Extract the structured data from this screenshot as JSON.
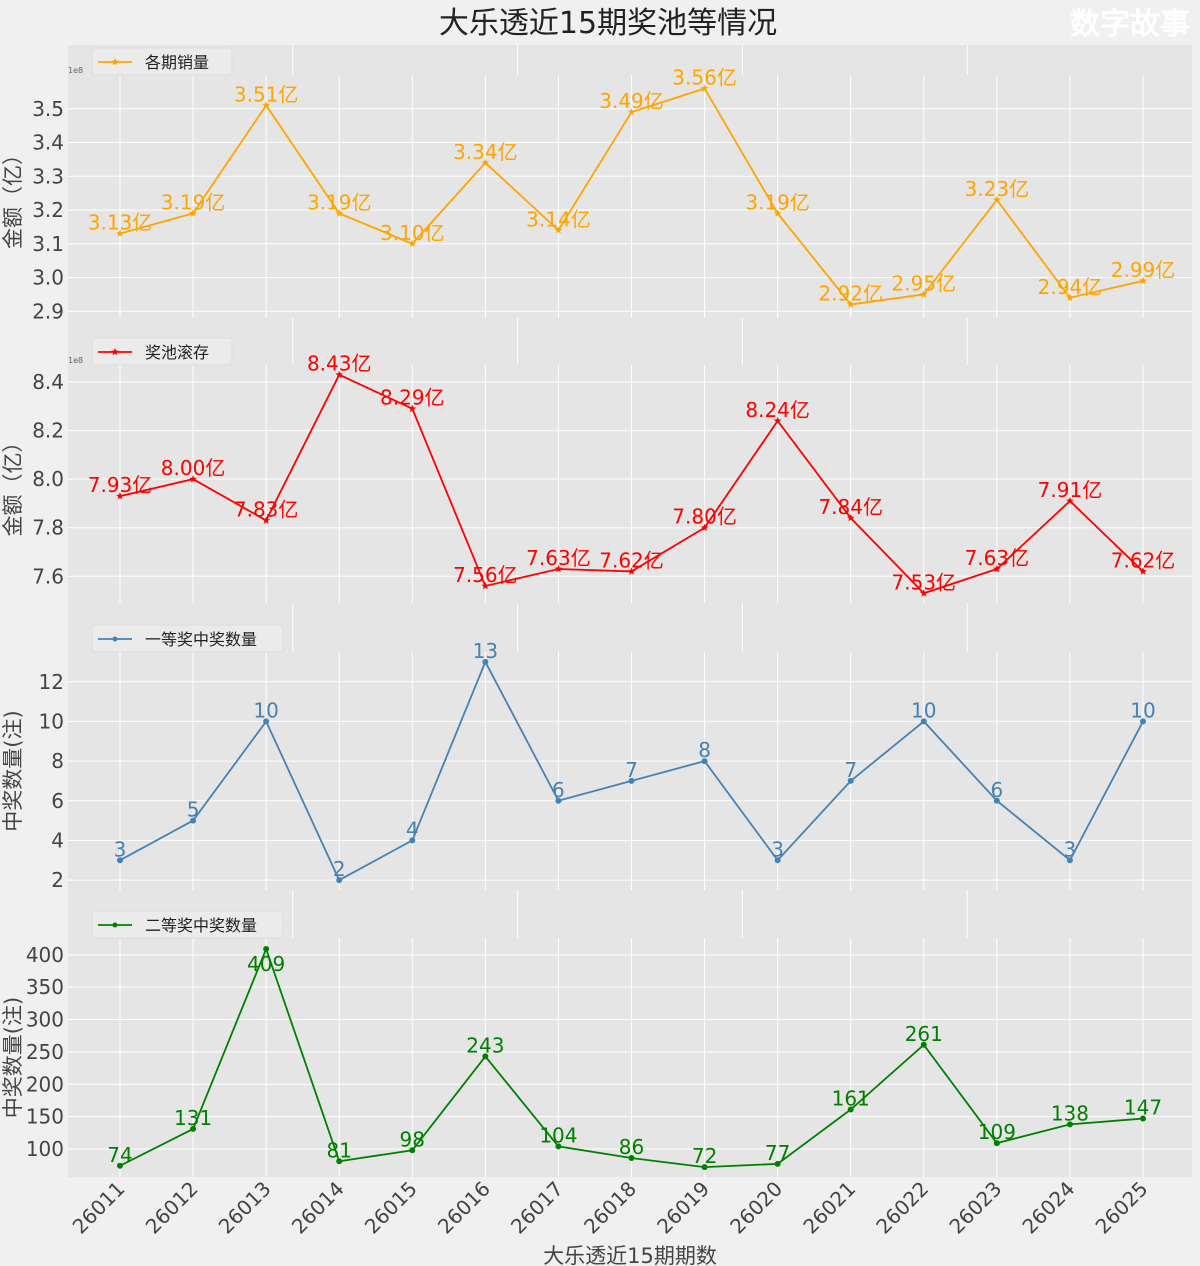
{
  "chart_data": {
    "type": "line",
    "title": "大乐透近15期奖池等情况",
    "xlabel": "大乐透近15期期数",
    "categories": [
      "26011",
      "26012",
      "26013",
      "26014",
      "26015",
      "26016",
      "26017",
      "26018",
      "26019",
      "26020",
      "26021",
      "26022",
      "26023",
      "26024",
      "26025"
    ],
    "watermark": "数字故事",
    "background_axis": {
      "ticks": [
        "0.0",
        "0.2",
        "0.4",
        "0.6",
        "0.8",
        "1.0"
      ]
    },
    "panels": [
      {
        "legend": "各期销量",
        "ylabel": "金额（亿）",
        "color": "#ffa500",
        "marker": "star",
        "offset_label": "1e8",
        "ylim": [
          2.88,
          3.6
        ],
        "yticks": [
          2.9,
          3.0,
          3.1,
          3.2,
          3.3,
          3.4,
          3.5
        ],
        "tick_decimals": 1,
        "label_suffix": "亿",
        "label_decimals": 2,
        "values": [
          3.13,
          3.19,
          3.51,
          3.19,
          3.1,
          3.34,
          3.14,
          3.49,
          3.56,
          3.19,
          2.92,
          2.95,
          3.23,
          2.94,
          2.99
        ]
      },
      {
        "legend": "奖池滚存",
        "ylabel": "金额（亿）",
        "color": "#ff0000",
        "marker": "star",
        "offset_label": "1e8",
        "ylim": [
          7.49,
          8.47
        ],
        "yticks": [
          7.6,
          7.8,
          8.0,
          8.2,
          8.4
        ],
        "tick_decimals": 1,
        "label_suffix": "亿",
        "label_decimals": 2,
        "values": [
          7.93,
          8.0,
          7.83,
          8.43,
          8.29,
          7.56,
          7.63,
          7.62,
          7.8,
          8.24,
          7.84,
          7.53,
          7.63,
          7.91,
          7.62
        ]
      },
      {
        "legend": "一等奖中奖数量",
        "ylabel": "中奖数量(注)",
        "color": "#4682b4",
        "marker": "circle",
        "ylim": [
          1.5,
          13.5
        ],
        "yticks": [
          2,
          4,
          6,
          8,
          10,
          12
        ],
        "tick_decimals": 0,
        "label_suffix": "",
        "label_decimals": 0,
        "values": [
          3,
          5,
          10,
          2,
          4,
          13,
          6,
          7,
          8,
          3,
          7,
          10,
          6,
          3,
          10
        ]
      },
      {
        "legend": "二等奖中奖数量",
        "ylabel": "中奖数量(注)",
        "color": "#008000",
        "marker": "circle",
        "ylim": [
          56.7,
          426
        ],
        "yticks": [
          100,
          150,
          200,
          250,
          300,
          350,
          400
        ],
        "tick_decimals": 0,
        "label_suffix": "",
        "label_decimals": 0,
        "values": [
          74,
          131,
          409,
          81,
          98,
          243,
          104,
          86,
          72,
          77,
          161,
          261,
          109,
          138,
          147
        ]
      }
    ]
  }
}
